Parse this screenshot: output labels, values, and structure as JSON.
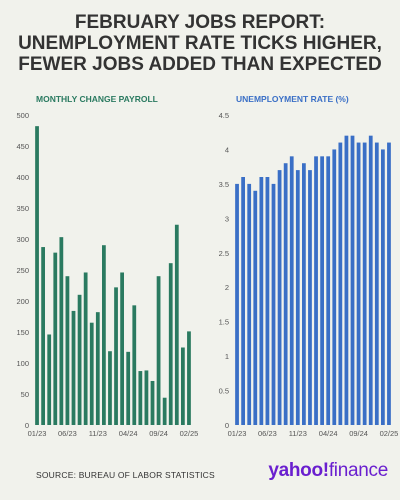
{
  "headline": {
    "line1": "FEBRUARY JOBS REPORT:",
    "line2": "UNEMPLOYMENT RATE TICKS HIGHER,",
    "line3": "FEWER JOBS ADDED THAN EXPECTED"
  },
  "source": "SOURCE: BUREAU OF LABOR STATISTICS",
  "logo": {
    "part1": "yahoo",
    "part2": "!",
    "part3": "finance"
  },
  "colors": {
    "payroll": "#2a7a60",
    "unemployment": "#3a6fc6",
    "logo": "#6a1fcf"
  },
  "chart_data": [
    {
      "type": "bar",
      "title": "MONTHLY CHANGE PAYROLL",
      "color": "#2a7a60",
      "x_tick_labels": [
        "01/23",
        "06/23",
        "11/23",
        "04/24",
        "09/24",
        "02/25"
      ],
      "x_tick_indices": [
        0,
        5,
        10,
        15,
        20,
        25
      ],
      "y_ticks": [
        0,
        50,
        100,
        150,
        200,
        250,
        300,
        350,
        400,
        450,
        500
      ],
      "ylim": [
        0,
        500
      ],
      "grid": false,
      "categories": [
        "01/23",
        "02/23",
        "03/23",
        "04/23",
        "05/23",
        "06/23",
        "07/23",
        "08/23",
        "09/23",
        "10/23",
        "11/23",
        "12/23",
        "01/24",
        "02/24",
        "03/24",
        "04/24",
        "05/24",
        "06/24",
        "07/24",
        "08/24",
        "09/24",
        "10/24",
        "11/24",
        "12/24",
        "01/25",
        "02/25"
      ],
      "values": [
        482,
        287,
        146,
        278,
        303,
        240,
        184,
        210,
        246,
        165,
        182,
        290,
        119,
        222,
        246,
        118,
        193,
        87,
        88,
        71,
        240,
        44,
        261,
        323,
        125,
        151
      ]
    },
    {
      "type": "bar",
      "title": "UNEMPLOYMENT RATE (%)",
      "color": "#3a6fc6",
      "x_tick_labels": [
        "01/23",
        "06/23",
        "11/23",
        "04/24",
        "09/24",
        "02/25"
      ],
      "x_tick_indices": [
        0,
        5,
        10,
        15,
        20,
        25
      ],
      "y_ticks": [
        0,
        0.5,
        1,
        1.5,
        2,
        2.5,
        3,
        3.5,
        4,
        4.5
      ],
      "ylim": [
        0,
        4.5
      ],
      "grid": false,
      "categories": [
        "01/23",
        "02/23",
        "03/23",
        "04/23",
        "05/23",
        "06/23",
        "07/23",
        "08/23",
        "09/23",
        "10/23",
        "11/23",
        "12/23",
        "01/24",
        "02/24",
        "03/24",
        "04/24",
        "05/24",
        "06/24",
        "07/24",
        "08/24",
        "09/24",
        "10/24",
        "11/24",
        "12/24",
        "01/25",
        "02/25"
      ],
      "values": [
        3.5,
        3.6,
        3.5,
        3.4,
        3.6,
        3.6,
        3.5,
        3.7,
        3.8,
        3.9,
        3.7,
        3.8,
        3.7,
        3.9,
        3.9,
        3.9,
        4.0,
        4.1,
        4.2,
        4.2,
        4.1,
        4.1,
        4.2,
        4.1,
        4.0,
        4.1
      ]
    }
  ]
}
